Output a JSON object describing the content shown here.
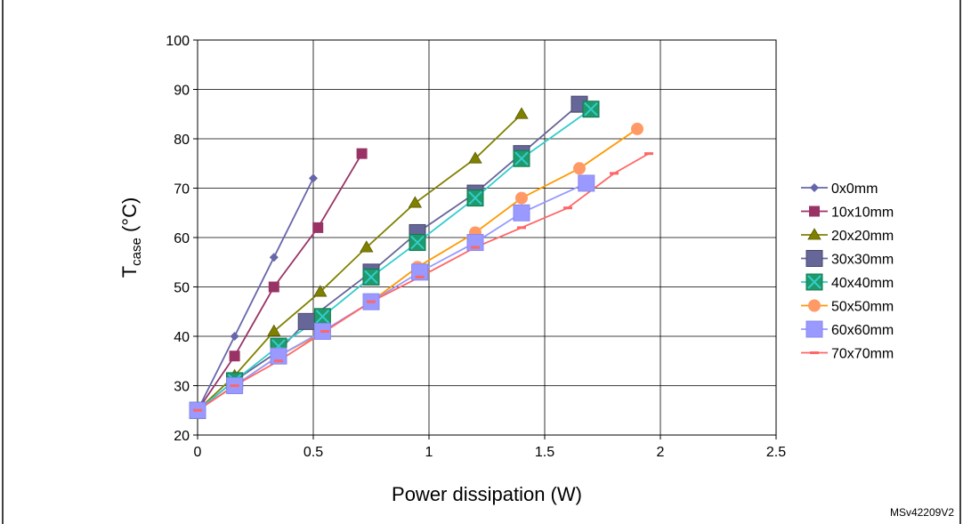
{
  "chart_data": {
    "type": "line",
    "xlabel": "Power dissipation (W)",
    "ylabel_main": "T",
    "ylabel_sub": "case",
    "ylabel_unit": " (°C)",
    "xlim": [
      0,
      2.5
    ],
    "ylim": [
      20,
      100
    ],
    "x_ticks": [
      0,
      0.5,
      1,
      1.5,
      2,
      2.5
    ],
    "x_tick_labels": [
      "0",
      "0.5",
      "1",
      "1.5",
      "2",
      "2.5"
    ],
    "y_ticks": [
      20,
      30,
      40,
      50,
      60,
      70,
      80,
      90,
      100
    ],
    "y_tick_labels": [
      "20",
      "30",
      "40",
      "50",
      "60",
      "70",
      "80",
      "90",
      "100"
    ],
    "grid": "horizontal and vertical",
    "legend_position": "right",
    "series": [
      {
        "name": "0x0mm",
        "color": "#6666aa",
        "marker": "diamond",
        "x": [
          0,
          0.16,
          0.33,
          0.5
        ],
        "y": [
          25,
          40,
          56,
          72
        ]
      },
      {
        "name": "10x10mm",
        "color": "#993366",
        "marker": "square",
        "x": [
          0,
          0.16,
          0.33,
          0.52,
          0.71
        ],
        "y": [
          25,
          36,
          50,
          62,
          77
        ]
      },
      {
        "name": "20x20mm",
        "color": "#808000",
        "marker": "triangle",
        "x": [
          0,
          0.16,
          0.33,
          0.53,
          0.73,
          0.94,
          1.2,
          1.4
        ],
        "y": [
          25,
          32,
          41,
          49,
          58,
          67,
          76,
          85
        ]
      },
      {
        "name": "30x30mm",
        "color": "#666699",
        "marker": "square-large",
        "x": [
          0,
          0.16,
          0.35,
          0.47,
          0.75,
          0.95,
          1.2,
          1.4,
          1.65
        ],
        "y": [
          25,
          31,
          37,
          43,
          53,
          61,
          69,
          77,
          87
        ]
      },
      {
        "name": "40x40mm",
        "color": "#33cccc",
        "marker": "x-square",
        "x": [
          0,
          0.16,
          0.35,
          0.54,
          0.75,
          0.95,
          1.2,
          1.4,
          1.7
        ],
        "y": [
          25,
          31,
          38,
          44,
          52,
          59,
          68,
          76,
          86
        ]
      },
      {
        "name": "50x50mm",
        "color": "#ff9900",
        "marker": "circle",
        "x": [
          0,
          0.16,
          0.35,
          0.55,
          0.75,
          0.95,
          1.2,
          1.4,
          1.65,
          1.9
        ],
        "y": [
          25,
          30,
          36,
          41,
          47,
          54,
          61,
          68,
          74,
          82
        ]
      },
      {
        "name": "60x60mm",
        "color": "#9999ff",
        "marker": "square-light",
        "x": [
          0,
          0.16,
          0.35,
          0.54,
          0.75,
          0.96,
          1.2,
          1.4,
          1.68
        ],
        "y": [
          25,
          30,
          36,
          41,
          47,
          53,
          59,
          65,
          71
        ]
      },
      {
        "name": "70x70mm",
        "color": "#ff6666",
        "marker": "dash",
        "x": [
          0,
          0.16,
          0.35,
          0.55,
          0.75,
          0.96,
          1.2,
          1.4,
          1.6,
          1.8,
          1.95
        ],
        "y": [
          25,
          30,
          35,
          41,
          47,
          52,
          58,
          62,
          66,
          73,
          77
        ]
      }
    ]
  },
  "footnote": "MSv42209V2"
}
